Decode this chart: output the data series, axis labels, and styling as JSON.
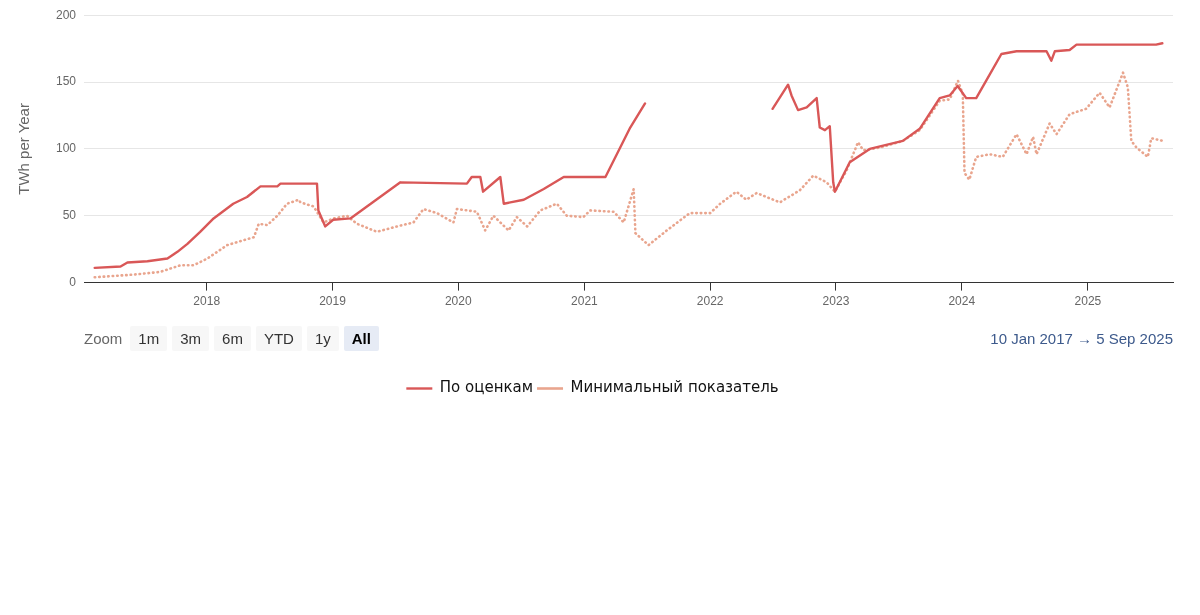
{
  "chart_data": {
    "type": "line",
    "ylabel": "TWh per Year",
    "xlim": [
      "2017-01-10",
      "2025-09-05"
    ],
    "xticks": [
      "2018",
      "2019",
      "2020",
      "2021",
      "2022",
      "2023",
      "2024",
      "2025"
    ],
    "ylim": [
      0,
      200
    ],
    "yticks": [
      0,
      50,
      100,
      150,
      200
    ],
    "grid": "y",
    "legend": "bottom",
    "annotations": [
      "Zoom",
      "1m",
      "3m",
      "6m",
      "YTD",
      "1y",
      "All",
      "10 Jan 2017 → 5 Sep 2025"
    ],
    "series": [
      {
        "name": "По оценкам",
        "color": "#d95757",
        "line_style": "solid",
        "x": [
          "2017-02-10",
          "2017-04-26",
          "2017-05-16",
          "2017-07-13",
          "2017-09-09",
          "2017-10-08",
          "2017-11-06",
          "2017-12-13",
          "2018-01-21",
          "2018-03-19",
          "2018-04-28",
          "2018-06-06",
          "2018-07-25",
          "2018-08-03",
          "2018-11-17",
          "2018-11-21",
          "2018-12-11",
          "2019-01-03",
          "2019-02-22",
          "2019-07-17",
          "2020-01-26",
          "2020-02-09",
          "2020-03-05",
          "2020-03-13",
          "2020-05-02",
          "2020-05-12",
          "2020-05-31",
          "2020-07-09",
          "2020-09-05",
          "2020-11-02",
          "2021-03-03",
          "2021-05-14",
          "2021-06-26",
          "2022-01-01",
          "2022-07-01",
          "2022-08-15",
          "2022-08-25",
          "2022-09-13",
          "2022-10-08",
          "2022-11-06",
          "2022-11-15",
          "2022-11-30",
          "2022-12-14",
          "2022-12-24",
          "2022-12-29",
          "2023-02-10",
          "2023-04-09",
          "2023-07-14",
          "2023-09-01",
          "2023-10-29",
          "2023-11-27",
          "2023-12-20",
          "2024-01-14",
          "2024-02-12",
          "2024-03-12",
          "2024-04-25",
          "2024-06-08",
          "2024-09-03",
          "2024-09-17",
          "2024-09-27",
          "2024-11-09",
          "2024-11-29",
          "2025-07-18",
          "2025-08-05"
        ],
        "values": [
          11,
          12,
          15,
          16,
          18,
          23,
          29,
          38,
          48,
          59,
          64,
          72,
          72,
          74,
          74,
          54,
          42,
          47,
          48,
          75,
          74,
          79,
          79,
          68,
          79,
          59,
          60,
          62,
          70,
          79,
          79,
          116,
          134,
          null,
          130,
          148,
          140,
          129,
          131,
          138,
          116,
          114,
          117,
          75,
          68,
          90,
          100,
          106,
          115,
          138,
          140,
          147,
          138,
          138,
          151,
          171,
          173,
          173,
          166,
          173,
          174,
          178,
          178,
          179
        ]
      },
      {
        "name": "Минимальный показатель",
        "color": "#e9a58e",
        "line_style": "dotted",
        "x": [
          "2017-02-10",
          "2017-06-04",
          "2017-08-19",
          "2017-10-17",
          "2017-11-24",
          "2018-01-03",
          "2018-03-01",
          "2018-04-09",
          "2018-05-18",
          "2018-06-01",
          "2018-06-26",
          "2018-07-25",
          "2018-08-22",
          "2018-09-25",
          "2018-09-30",
          "2018-11-07",
          "2018-12-06",
          "2019-01-04",
          "2019-02-12",
          "2019-03-13",
          "2019-05-10",
          "2019-07-07",
          "2019-08-24",
          "2019-09-22",
          "2019-10-31",
          "2019-12-18",
          "2019-12-28",
          "2020-02-24",
          "2020-03-19",
          "2020-04-12",
          "2020-05-26",
          "2020-06-19",
          "2020-07-19",
          "2020-08-26",
          "2020-10-13",
          "2020-11-11",
          "2020-12-29",
          "2021-01-18",
          "2021-03-27",
          "2021-04-25",
          "2021-05-24",
          "2021-05-29",
          "2021-07-06",
          "2021-08-28",
          "2021-11-03",
          "2022-01-01",
          "2022-01-30",
          "2022-03-18",
          "2022-04-16",
          "2022-05-16",
          "2022-07-22",
          "2022-09-18",
          "2022-10-27",
          "2022-12-05",
          "2022-12-29",
          "2023-02-01",
          "2023-03-06",
          "2023-03-21",
          "2023-05-08",
          "2023-07-14",
          "2023-09-01",
          "2023-10-29",
          "2023-11-27",
          "2023-12-21",
          "2024-01-04",
          "2024-01-09",
          "2024-01-23",
          "2024-02-12",
          "2024-03-22",
          "2024-04-29",
          "2024-06-08",
          "2024-07-07",
          "2024-07-26",
          "2024-08-05",
          "2024-09-12",
          "2024-10-02",
          "2024-11-09",
          "2024-12-27",
          "2025-02-04",
          "2025-03-05",
          "2025-04-13",
          "2025-04-27",
          "2025-05-07",
          "2025-05-22",
          "2025-06-24",
          "2025-07-04",
          "2025-08-07"
        ],
        "values": [
          4,
          6,
          8,
          13,
          13,
          18,
          28,
          31,
          34,
          44,
          43,
          50,
          59,
          62,
          60,
          57,
          45,
          48,
          50,
          44,
          38,
          42,
          45,
          55,
          52,
          45,
          55,
          53,
          39,
          50,
          39,
          49,
          42,
          54,
          59,
          50,
          49,
          54,
          53,
          45,
          70,
          37,
          28,
          39,
          52,
          52,
          59,
          68,
          62,
          67,
          60,
          69,
          80,
          75,
          68,
          84,
          105,
          99,
          101,
          106,
          114,
          136,
          137,
          151,
          141,
          82,
          77,
          94,
          96,
          94,
          111,
          96,
          109,
          96,
          119,
          111,
          126,
          130,
          142,
          131,
          157,
          146,
          106,
          101,
          94,
          108,
          106
        ]
      }
    ]
  }
}
